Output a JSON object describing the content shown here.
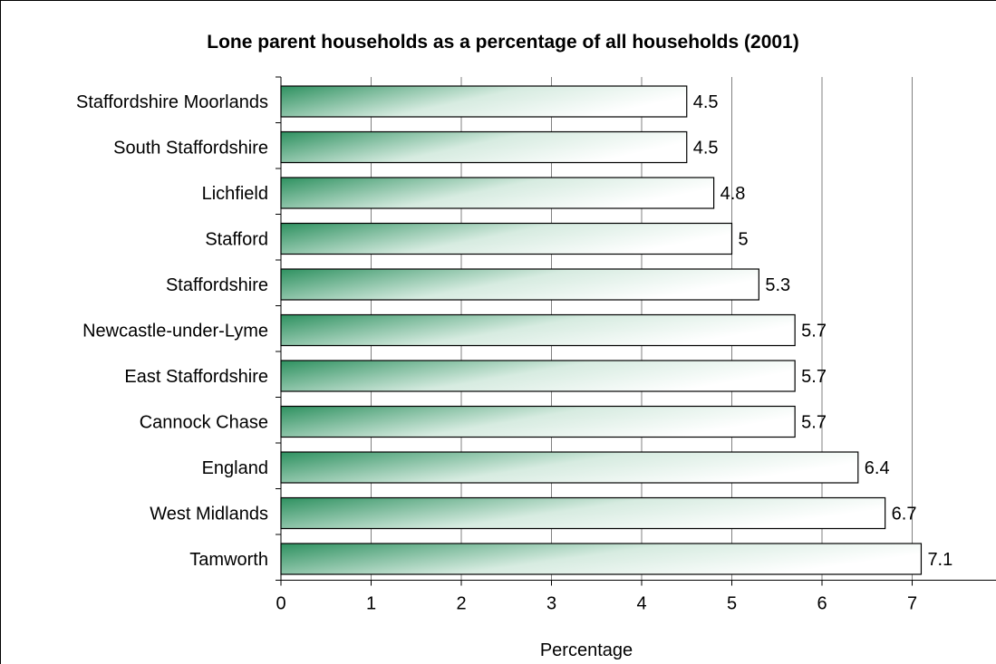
{
  "chart_data": {
    "type": "bar",
    "orientation": "horizontal",
    "title": "Lone parent households as a percentage of all households (2001)",
    "xlabel": "Percentage",
    "ylabel": "",
    "xlim": [
      0,
      8
    ],
    "xticks": [
      0,
      1,
      2,
      3,
      4,
      5,
      6,
      7
    ],
    "grid": "vertical",
    "legend": "none",
    "categories": [
      "Staffordshire Moorlands",
      "South Staffordshire",
      "Lichfield",
      "Stafford",
      "Staffordshire",
      "Newcastle-under-Lyme",
      "East Staffordshire",
      "Cannock Chase",
      "England",
      "West Midlands",
      "Tamworth"
    ],
    "values": [
      4.5,
      4.5,
      4.8,
      5,
      5.3,
      5.7,
      5.7,
      5.7,
      6.4,
      6.7,
      7.1
    ],
    "value_labels": [
      "4.5",
      "4.5",
      "4.8",
      "5",
      "5.3",
      "5.7",
      "5.7",
      "5.7",
      "6.4",
      "6.7",
      "7.1"
    ],
    "colors": {
      "bar_gradient_start": "#2e9160",
      "bar_gradient_end": "#ffffff",
      "bar_outline": "#000000",
      "gridline": "#808080"
    }
  }
}
